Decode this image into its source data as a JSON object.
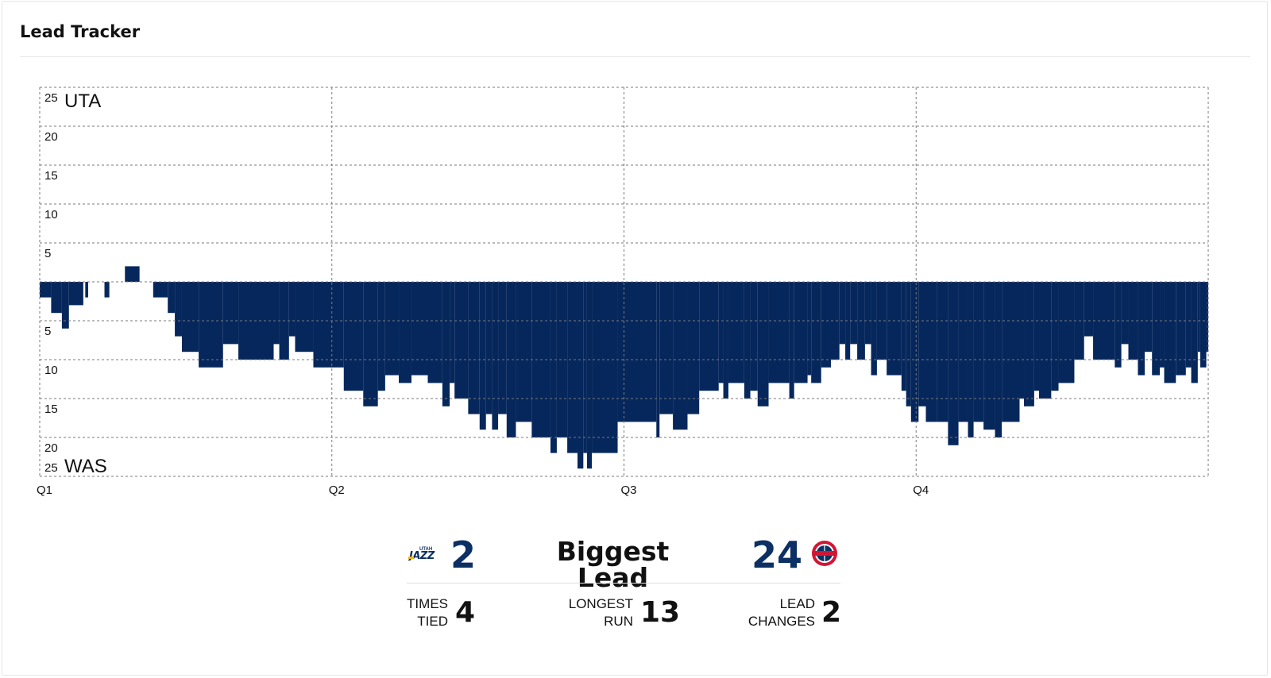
{
  "header": {
    "title": "Lead Tracker"
  },
  "colors": {
    "lead_fill": "#06275c",
    "accent": "#0c2f64",
    "grid": "#7a7a7a"
  },
  "chart_data": {
    "type": "area",
    "subtype": "lead-tracker step chart",
    "title": "",
    "xlabel": "",
    "ylabel": "",
    "x_unit": "game minute",
    "xlim": [
      0,
      48
    ],
    "ylim": [
      -25,
      25
    ],
    "y_ticks": [
      25,
      20,
      15,
      10,
      5,
      0,
      5,
      10,
      15,
      20,
      25
    ],
    "y_tick_labels": [
      "25",
      "20",
      "15",
      "10",
      "5",
      "",
      "5",
      "10",
      "15",
      "20",
      "25"
    ],
    "quarter_labels": [
      "Q1",
      "Q2",
      "Q3",
      "Q4"
    ],
    "quarter_starts": [
      0,
      12,
      24,
      36
    ],
    "top_team": "UTA",
    "bottom_team": "WAS",
    "grid": true,
    "series": [
      {
        "name": "",
        "note": "positive = UTA lead, negative = WAS lead",
        "points": [
          [
            0.0,
            -2
          ],
          [
            0.47,
            -4
          ],
          [
            0.91,
            -6
          ],
          [
            1.2,
            -3
          ],
          [
            1.79,
            0
          ],
          [
            1.87,
            -2
          ],
          [
            1.99,
            0
          ],
          [
            2.66,
            -2
          ],
          [
            2.86,
            0
          ],
          [
            3.5,
            2
          ],
          [
            4.1,
            0
          ],
          [
            4.66,
            -2
          ],
          [
            5.26,
            -4
          ],
          [
            5.55,
            -7
          ],
          [
            5.84,
            -9
          ],
          [
            6.53,
            -11
          ],
          [
            7.53,
            -8
          ],
          [
            8.16,
            -10
          ],
          [
            9.61,
            -8
          ],
          [
            9.84,
            -10
          ],
          [
            10.24,
            -7
          ],
          [
            10.49,
            -9
          ],
          [
            11.24,
            -11
          ],
          [
            12.49,
            -14
          ],
          [
            13.29,
            -16
          ],
          [
            13.89,
            -14
          ],
          [
            14.19,
            -12
          ],
          [
            14.75,
            -13
          ],
          [
            15.27,
            -12
          ],
          [
            15.94,
            -13
          ],
          [
            16.54,
            -16
          ],
          [
            16.84,
            -13
          ],
          [
            17.04,
            -15
          ],
          [
            17.6,
            -17
          ],
          [
            18.07,
            -19
          ],
          [
            18.33,
            -17
          ],
          [
            18.58,
            -19
          ],
          [
            18.83,
            -17
          ],
          [
            19.18,
            -20
          ],
          [
            19.56,
            -18
          ],
          [
            20.21,
            -20
          ],
          [
            20.98,
            -22
          ],
          [
            21.24,
            -20
          ],
          [
            21.67,
            -22
          ],
          [
            22.09,
            -24
          ],
          [
            22.33,
            -22
          ],
          [
            22.48,
            -24
          ],
          [
            22.68,
            -22
          ],
          [
            23.74,
            -18
          ],
          [
            25.33,
            -20
          ],
          [
            25.46,
            -17
          ],
          [
            26.01,
            -19
          ],
          [
            26.61,
            -17
          ],
          [
            27.09,
            -14
          ],
          [
            27.89,
            -13
          ],
          [
            28.08,
            -15
          ],
          [
            28.29,
            -13
          ],
          [
            28.94,
            -15
          ],
          [
            29.19,
            -14
          ],
          [
            29.49,
            -16
          ],
          [
            29.94,
            -13
          ],
          [
            30.79,
            -15
          ],
          [
            30.99,
            -13
          ],
          [
            31.54,
            -12
          ],
          [
            31.69,
            -13
          ],
          [
            32.1,
            -11
          ],
          [
            32.5,
            -10
          ],
          [
            32.85,
            -8
          ],
          [
            33.09,
            -10
          ],
          [
            33.29,
            -8
          ],
          [
            33.58,
            -10
          ],
          [
            33.9,
            -8
          ],
          [
            34.15,
            -12
          ],
          [
            34.39,
            -10
          ],
          [
            34.79,
            -12
          ],
          [
            35.4,
            -14
          ],
          [
            35.59,
            -16
          ],
          [
            35.79,
            -18
          ],
          [
            36.1,
            -16
          ],
          [
            36.4,
            -18
          ],
          [
            36.86,
            -18
          ],
          [
            37.31,
            -21
          ],
          [
            37.74,
            -18
          ],
          [
            38.13,
            -20
          ],
          [
            38.36,
            -18
          ],
          [
            38.77,
            -19
          ],
          [
            39.24,
            -20
          ],
          [
            39.52,
            -18
          ],
          [
            40.25,
            -15
          ],
          [
            40.43,
            -16
          ],
          [
            40.85,
            -14
          ],
          [
            41.05,
            -15
          ],
          [
            41.55,
            -14
          ],
          [
            41.85,
            -13
          ],
          [
            42.5,
            -10
          ],
          [
            42.9,
            -7
          ],
          [
            43.27,
            -10
          ],
          [
            44.16,
            -11
          ],
          [
            44.43,
            -8
          ],
          [
            44.72,
            -10
          ],
          [
            45.11,
            -12
          ],
          [
            45.39,
            -9
          ],
          [
            45.69,
            -12
          ],
          [
            46.01,
            -11
          ],
          [
            46.19,
            -13
          ],
          [
            46.67,
            -12
          ],
          [
            47.08,
            -11
          ],
          [
            47.3,
            -13
          ],
          [
            47.57,
            -9
          ],
          [
            47.67,
            -11
          ],
          [
            47.92,
            -9
          ],
          [
            48.0,
            -11
          ]
        ]
      }
    ]
  },
  "summary": {
    "home_team": "UTA",
    "away_team": "WAS",
    "left_logo": "utah-jazz-logo",
    "right_logo": "washington-wizards-logo",
    "left_biggest_lead": "2",
    "right_biggest_lead": "24",
    "biggest_lead_label": "Biggest Lead",
    "times_tied_label": "TIMES\nTIED",
    "times_tied_value": "4",
    "longest_run_label": "LONGEST\nRUN",
    "longest_run_value": "13",
    "lead_changes_label": "LEAD\nCHANGES",
    "lead_changes_value": "2"
  }
}
